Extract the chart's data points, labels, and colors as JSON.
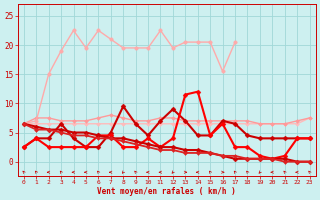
{
  "xlabel": "Vent moyen/en rafales ( km/h )",
  "background_color": "#cdf0f0",
  "grid_color": "#a0d8d8",
  "ylim": [
    -2.5,
    27
  ],
  "xlim": [
    -0.5,
    23.5
  ],
  "yticks": [
    0,
    5,
    10,
    15,
    20,
    25
  ],
  "x_ticks": [
    0,
    1,
    2,
    3,
    4,
    5,
    6,
    7,
    8,
    9,
    10,
    11,
    12,
    13,
    14,
    15,
    16,
    17,
    18,
    19,
    20,
    21,
    22,
    23
  ],
  "lines": [
    {
      "y": [
        6.5,
        6.5,
        6.5,
        6.5,
        6.5,
        6.5,
        6.5,
        6.5,
        6.5,
        6.5,
        6.5,
        6.5,
        6.5,
        6.5,
        6.5,
        6.5,
        6.5,
        6.5,
        6.5,
        6.5,
        6.5,
        6.5,
        6.5,
        7.5
      ],
      "color": "#ffbbbb",
      "lw": 1.0,
      "marker": "D",
      "ms": 2.0,
      "ls": "-",
      "zorder": 2
    },
    {
      "y": [
        6.5,
        7.5,
        7.5,
        7.0,
        7.0,
        7.0,
        7.5,
        8.0,
        7.5,
        7.0,
        7.0,
        7.5,
        7.5,
        7.0,
        7.0,
        7.0,
        7.0,
        7.0,
        7.0,
        6.5,
        6.5,
        6.5,
        7.0,
        7.5
      ],
      "color": "#ff9999",
      "lw": 1.0,
      "marker": "D",
      "ms": 2.0,
      "ls": "-",
      "zorder": 2
    },
    {
      "y": [
        6.5,
        7.0,
        15.0,
        19.0,
        22.5,
        19.5,
        22.5,
        21.0,
        19.5,
        19.5,
        19.5,
        22.5,
        19.5,
        20.5,
        20.5,
        20.5,
        15.5,
        20.5,
        null,
        null,
        null,
        null,
        null,
        null
      ],
      "color": "#ffaaaa",
      "lw": 1.0,
      "marker": ".",
      "ms": 5,
      "ls": "-",
      "zorder": 2
    },
    {
      "y": [
        6.5,
        6.0,
        5.5,
        5.5,
        5.0,
        5.0,
        4.5,
        4.0,
        4.0,
        3.5,
        3.0,
        2.5,
        2.5,
        2.0,
        2.0,
        1.5,
        1.0,
        0.5,
        0.5,
        0.5,
        0.5,
        0.5,
        0.0,
        0.0
      ],
      "color": "#cc0000",
      "lw": 1.5,
      "marker": "D",
      "ms": 2.5,
      "ls": "-",
      "zorder": 4
    },
    {
      "y": [
        6.5,
        5.5,
        5.5,
        5.0,
        4.5,
        4.5,
        4.0,
        4.0,
        3.5,
        3.0,
        2.5,
        2.0,
        2.0,
        1.5,
        1.5,
        1.5,
        1.0,
        1.0,
        0.5,
        0.5,
        0.5,
        0.0,
        0.0,
        0.0
      ],
      "color": "#dd2222",
      "lw": 1.3,
      "marker": "D",
      "ms": 2.0,
      "ls": "-",
      "zorder": 4
    },
    {
      "y": [
        2.5,
        4.0,
        4.0,
        6.5,
        4.0,
        2.5,
        2.5,
        5.0,
        9.5,
        6.5,
        4.5,
        7.0,
        9.0,
        7.0,
        4.5,
        4.5,
        7.0,
        6.5,
        4.5,
        4.0,
        4.0,
        4.0,
        4.0,
        4.0
      ],
      "color": "#cc0000",
      "lw": 1.5,
      "marker": "D",
      "ms": 2.5,
      "ls": "-",
      "zorder": 3
    },
    {
      "y": [
        2.5,
        4.0,
        2.5,
        2.5,
        2.5,
        2.5,
        4.5,
        4.5,
        2.5,
        2.5,
        4.0,
        2.5,
        4.0,
        11.5,
        12.0,
        4.5,
        6.5,
        2.5,
        2.5,
        1.0,
        0.5,
        1.0,
        4.0,
        4.0
      ],
      "color": "#ff0000",
      "lw": 1.5,
      "marker": "D",
      "ms": 2.5,
      "ls": "-",
      "zorder": 3
    }
  ],
  "arrow_angles_deg": [
    225,
    225,
    270,
    225,
    270,
    270,
    225,
    270,
    315,
    225,
    270,
    270,
    315,
    90,
    270,
    225,
    90,
    225,
    225,
    315,
    270,
    225,
    270,
    225
  ]
}
